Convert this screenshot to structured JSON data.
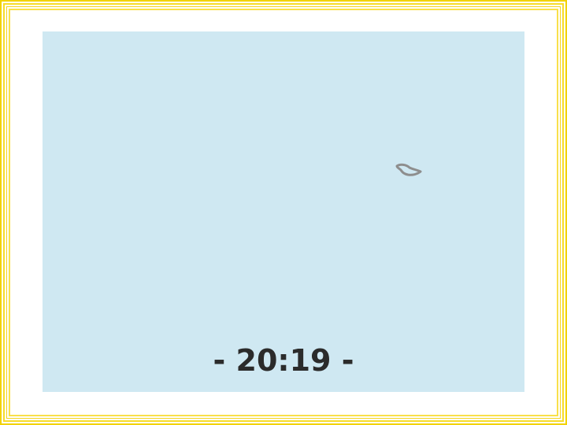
{
  "map": {
    "water_color": "#cfe8f2",
    "land_outline_color": "#8e8e8e",
    "features": [
      {
        "type": "island",
        "icon": "island-outline"
      }
    ]
  },
  "clock": {
    "text": "- 20:19 -"
  },
  "frame": {
    "color": "#f2d200"
  }
}
